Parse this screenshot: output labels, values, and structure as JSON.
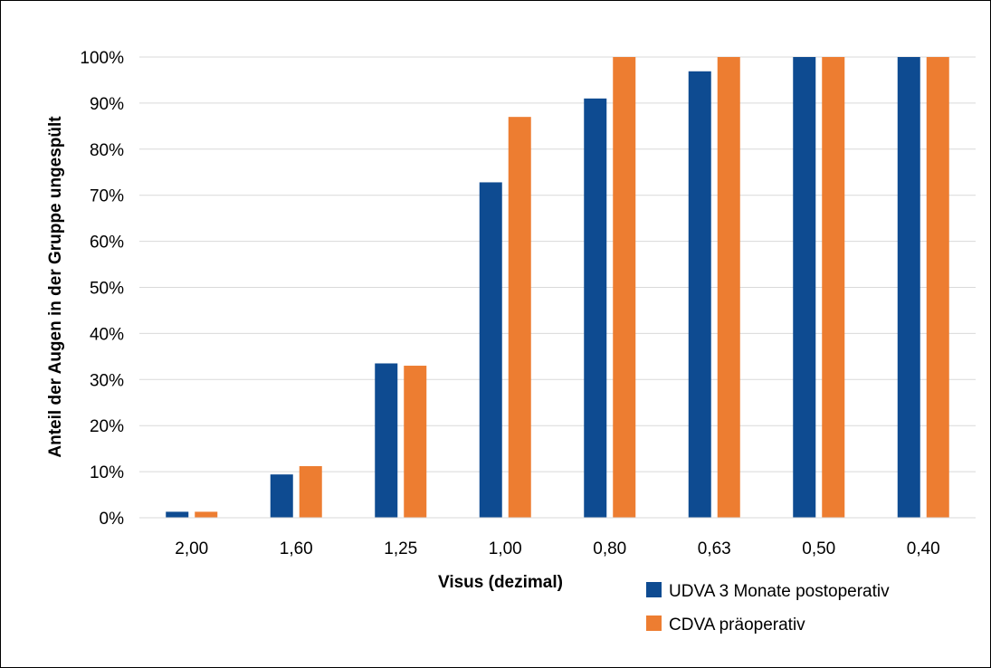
{
  "chart_data": {
    "type": "bar",
    "categories": [
      "2,00",
      "1,60",
      "1,25",
      "1,00",
      "0,80",
      "0,63",
      "0,50",
      "0,40"
    ],
    "series": [
      {
        "name": "UDVA 3 Monate postoperativ",
        "color": "#0E4B91",
        "values": [
          1.3,
          9.4,
          33.5,
          72.8,
          91.0,
          96.9,
          100,
          100
        ]
      },
      {
        "name": "CDVA präoperativ",
        "color": "#ED7D31",
        "values": [
          1.3,
          11.2,
          33.0,
          87.0,
          100,
          100,
          100,
          100
        ]
      }
    ],
    "xlabel": "Visus (dezimal)",
    "ylabel": "Anteil der Augen in der Gruppe ungespült",
    "ylim": [
      0,
      100
    ],
    "ytick_labels": [
      "0%",
      "10%",
      "20%",
      "30%",
      "40%",
      "50%",
      "60%",
      "70%",
      "80%",
      "90%",
      "100%"
    ],
    "grid": true,
    "gridline_color": "#D9D9D9",
    "legend_position": "bottom-right"
  }
}
